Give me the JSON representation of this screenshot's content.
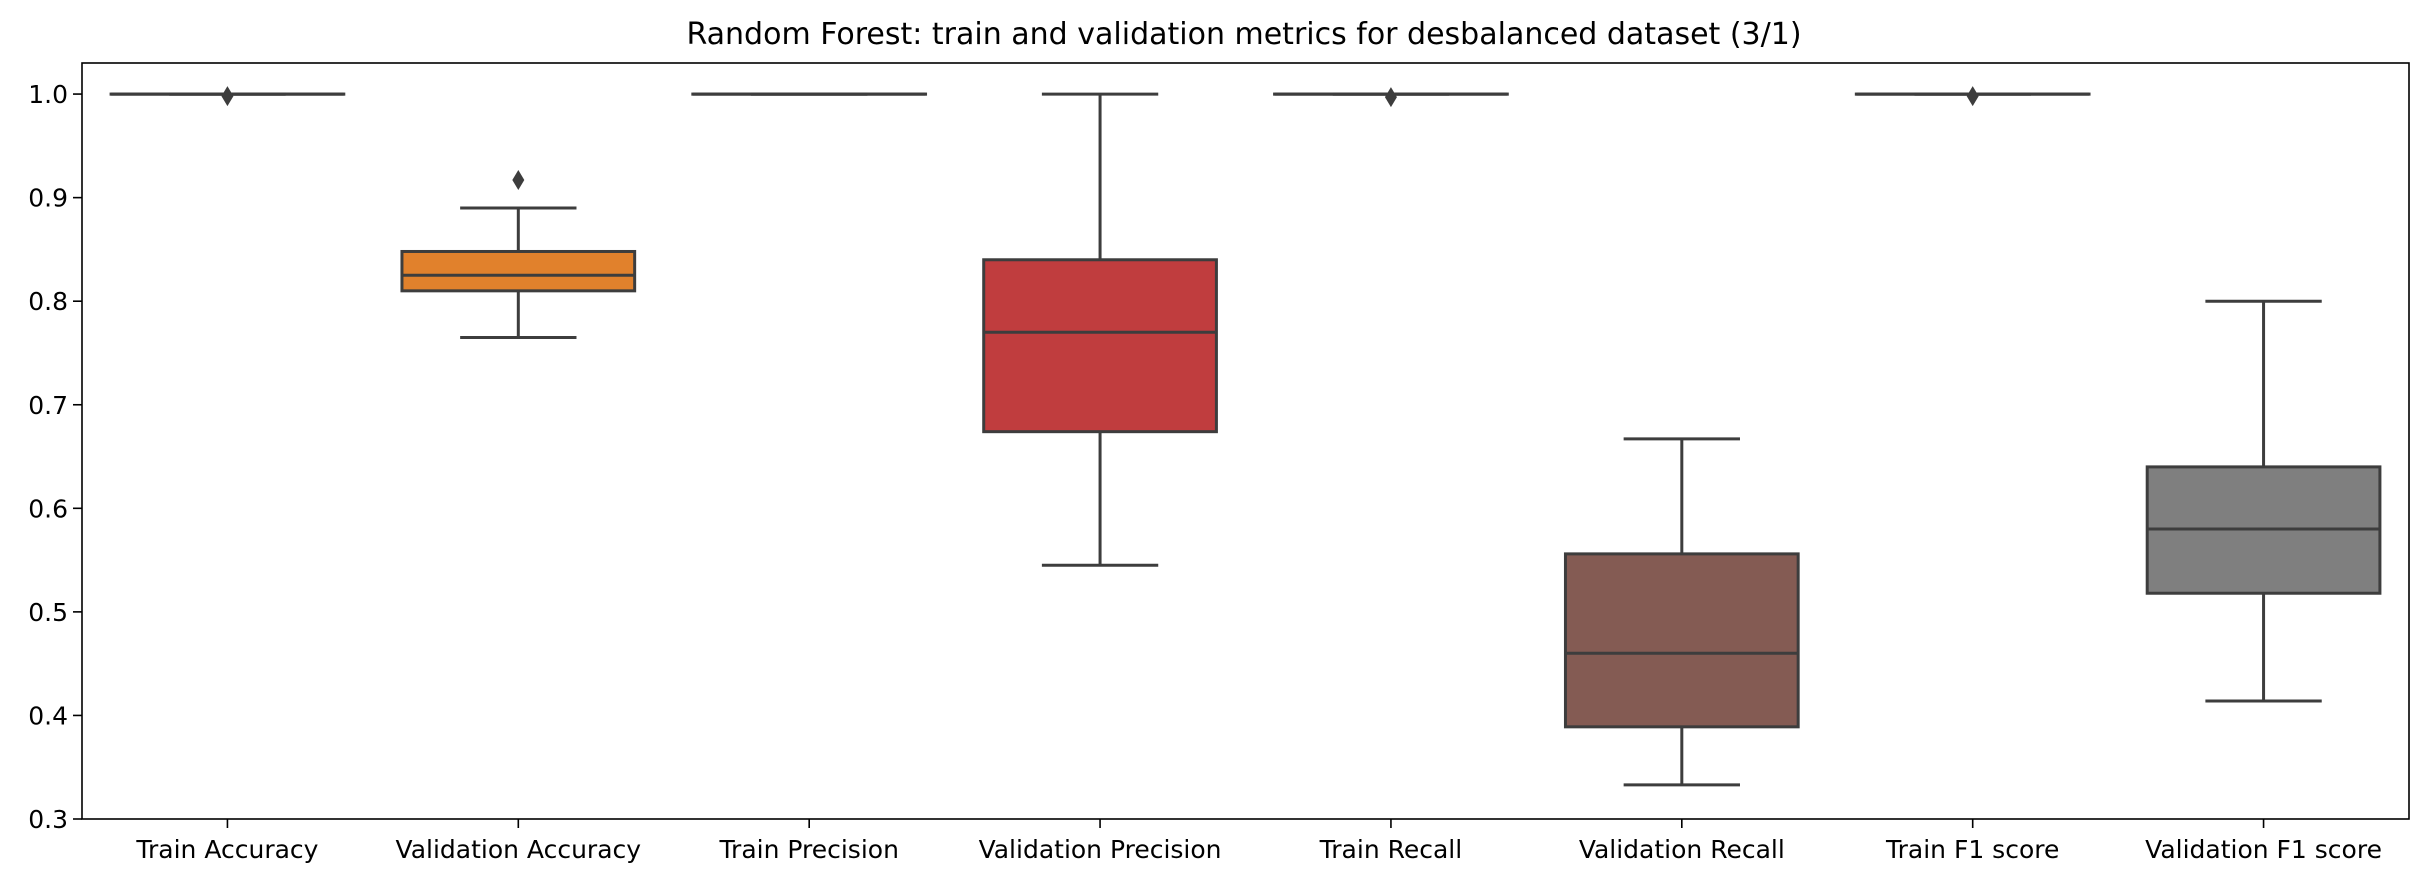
{
  "chart_data": {
    "type": "box",
    "title": "Random Forest: train and validation metrics for desbalanced dataset (3/1)",
    "xlabel": "",
    "ylabel": "",
    "ylim": [
      0.3,
      1.03
    ],
    "yticks": [
      "0.3",
      "0.4",
      "0.5",
      "0.6",
      "0.7",
      "0.8",
      "0.9",
      "1.0"
    ],
    "grid": false,
    "categories": [
      "Train Accuracy",
      "Validation Accuracy",
      "Train Precision",
      "Validation Precision",
      "Train Recall",
      "Validation Recall",
      "Train F1 score",
      "Validation F1 score"
    ],
    "boxes": [
      {
        "name": "Train Accuracy",
        "color": "#3274a1",
        "whislo": 1.0,
        "q1": 1.0,
        "med": 1.0,
        "q3": 1.0,
        "whishi": 1.0,
        "fliers": [
          0.998
        ]
      },
      {
        "name": "Validation Accuracy",
        "color": "#e1812c",
        "whislo": 0.765,
        "q1": 0.81,
        "med": 0.825,
        "q3": 0.848,
        "whishi": 0.89,
        "fliers": [
          0.917
        ]
      },
      {
        "name": "Train Precision",
        "color": "#3a923a",
        "whislo": 1.0,
        "q1": 1.0,
        "med": 1.0,
        "q3": 1.0,
        "whishi": 1.0,
        "fliers": []
      },
      {
        "name": "Validation Precision",
        "color": "#c03d3e",
        "whislo": 0.545,
        "q1": 0.674,
        "med": 0.77,
        "q3": 0.84,
        "whishi": 1.0,
        "fliers": []
      },
      {
        "name": "Train Recall",
        "color": "#9372b2",
        "whislo": 1.0,
        "q1": 1.0,
        "med": 1.0,
        "q3": 1.0,
        "whishi": 1.0,
        "fliers": [
          0.997
        ]
      },
      {
        "name": "Validation Recall",
        "color": "#845b53",
        "whislo": 0.333,
        "q1": 0.389,
        "med": 0.46,
        "q3": 0.556,
        "whishi": 0.667,
        "fliers": []
      },
      {
        "name": "Train F1 score",
        "color": "#d684bd",
        "whislo": 1.0,
        "q1": 1.0,
        "med": 1.0,
        "q3": 1.0,
        "whishi": 1.0,
        "fliers": [
          0.998
        ]
      },
      {
        "name": "Validation F1 score",
        "color": "#7f7f7f",
        "whislo": 0.414,
        "q1": 0.518,
        "med": 0.58,
        "q3": 0.64,
        "whishi": 0.8,
        "fliers": []
      }
    ]
  }
}
